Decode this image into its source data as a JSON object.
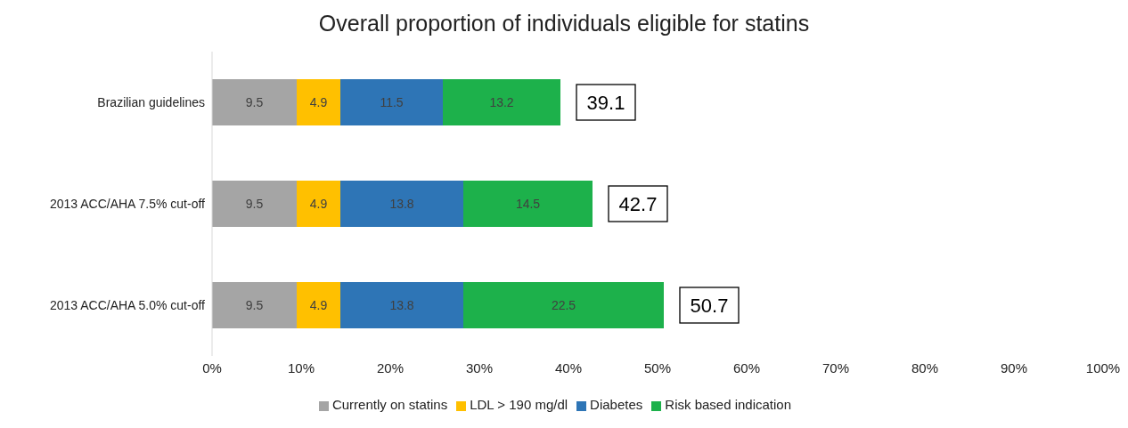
{
  "chart_data": {
    "type": "bar",
    "orientation": "horizontal",
    "stacked": true,
    "title": "Overall proportion of individuals eligible for statins",
    "categories": [
      "Brazilian guidelines",
      "2013 ACC/AHA 7.5% cut-off",
      "2013 ACC/AHA 5.0% cut-off"
    ],
    "series": [
      {
        "name": "Currently on statins",
        "color": "#a5a5a5",
        "values": [
          9.5,
          9.5,
          9.5
        ]
      },
      {
        "name": "LDL > 190 mg/dl",
        "color": "#ffc000",
        "values": [
          4.9,
          4.9,
          4.9
        ]
      },
      {
        "name": "Diabetes",
        "color": "#2e75b6",
        "values": [
          11.5,
          13.8,
          13.8
        ]
      },
      {
        "name": "Risk based indication",
        "color": "#1db14b",
        "values": [
          13.2,
          14.5,
          22.5
        ]
      }
    ],
    "xlim": [
      0,
      100
    ],
    "xticks": [
      {
        "value": 0,
        "label": "0%"
      },
      {
        "value": 10,
        "label": "10%"
      },
      {
        "value": 20,
        "label": "20%"
      },
      {
        "value": 30,
        "label": "30%"
      },
      {
        "value": 40,
        "label": "40%"
      },
      {
        "value": 50,
        "label": "50%"
      },
      {
        "value": 60,
        "label": "60%"
      },
      {
        "value": 70,
        "label": "70%"
      },
      {
        "value": 80,
        "label": "80%"
      },
      {
        "value": 90,
        "label": "90%"
      },
      {
        "value": 100,
        "label": "100%"
      }
    ],
    "data_labels": true,
    "totals": [
      "39.1",
      "42.7",
      "50.7"
    ],
    "legend": "bottom",
    "grid": false
  }
}
